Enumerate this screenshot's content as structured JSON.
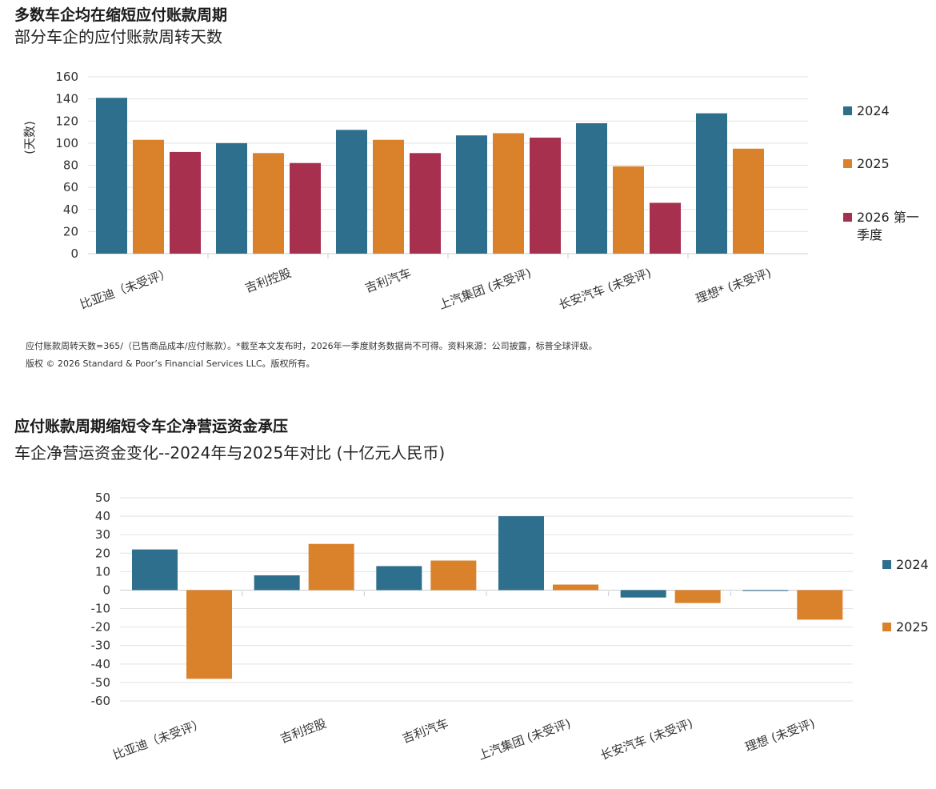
{
  "charts": [
    {
      "title": "多数车企均在缩短应付账款周期",
      "subtitle": "部分车企的应付账款周转天数",
      "footnote": "应付账款周转天数=365/（已售商品成本/应付账款）。*截至本文发布时，2026年一季度财务数据尚不可得。资料来源：公司披露，标普全球评级。",
      "copyright": "版权 © 2026 Standard & Poor’s Financial Services LLC。版权所有。"
    },
    {
      "title": "应付账款周期缩短令车企净营运资金承压",
      "subtitle": "车企净营运资金变化--2024年与2025年对比 (十亿元人民币)"
    }
  ],
  "colors": {
    "s2024": "#2e6f8e",
    "s2025": "#d9822b",
    "s2026": "#a8304f"
  },
  "chart_data": [
    {
      "type": "bar",
      "title": "多数车企均在缩短应付账款周期",
      "subtitle": "部分车企的应付账款周转天数",
      "ylabel": "(天数)",
      "xlabel": "",
      "ylim": [
        0,
        160
      ],
      "yticks": [
        0,
        20,
        40,
        60,
        80,
        100,
        120,
        140,
        160
      ],
      "categories": [
        "比亚迪（未受评）",
        "吉利控股",
        "吉利汽车",
        "上汽集团 (未受评)",
        "长安汽车 (未受评)",
        "理想* (未受评)"
      ],
      "series": [
        {
          "name": "2024",
          "values": [
            141,
            100,
            112,
            107,
            118,
            127
          ]
        },
        {
          "name": "2025",
          "values": [
            103,
            91,
            103,
            109,
            79,
            95
          ]
        },
        {
          "name": "2026 第一季度",
          "values": [
            92,
            82,
            91,
            105,
            46,
            null
          ]
        }
      ],
      "legend": "right",
      "grid": true
    },
    {
      "type": "bar",
      "title": "应付账款周期缩短令车企净营运资金承压",
      "subtitle": "车企净营运资金变化--2024年与2025年对比 (十亿元人民币)",
      "xlabel": "",
      "ylabel": "",
      "ylim": [
        -60,
        50
      ],
      "yticks": [
        50,
        40,
        30,
        20,
        10,
        0,
        -10,
        -20,
        -30,
        -40,
        -50,
        -60
      ],
      "categories": [
        "比亚迪（未受评）",
        "吉利控股",
        "吉利汽车",
        "上汽集团 (未受评)",
        "长安汽车 (未受评)",
        "理想 (未受评)"
      ],
      "series": [
        {
          "name": "2024",
          "values": [
            22,
            8,
            13,
            40,
            -4,
            0
          ]
        },
        {
          "name": "2025",
          "values": [
            -48,
            25,
            16,
            3,
            -7,
            -16
          ]
        }
      ],
      "legend": "right",
      "grid": true
    }
  ]
}
